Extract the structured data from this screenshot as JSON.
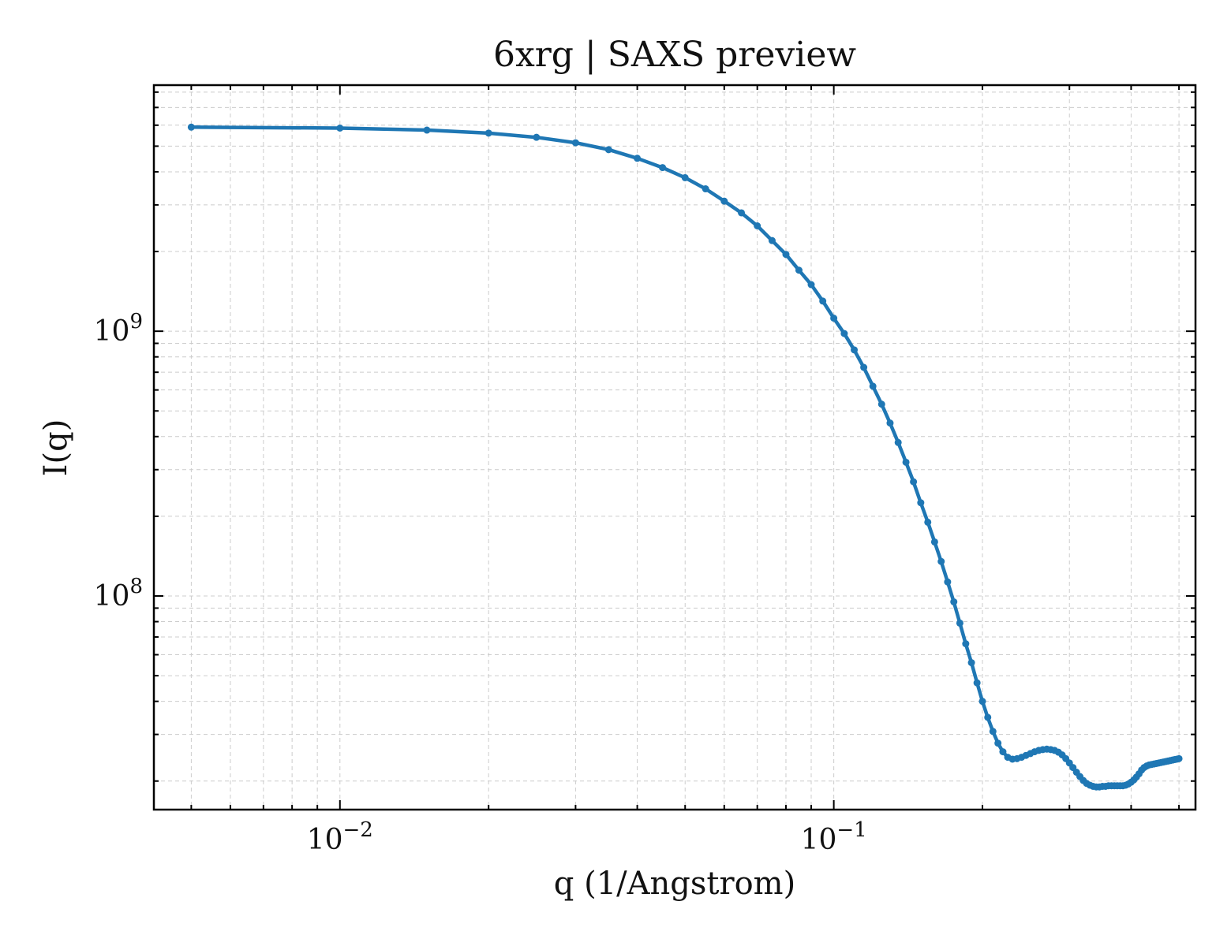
{
  "chart_data": {
    "type": "line",
    "title": "6xrg | SAXS preview",
    "xlabel": "q (1/Angstrom)",
    "ylabel": "I(q)",
    "xscale": "log",
    "yscale": "log",
    "xlim": [
      0.0042,
      0.54
    ],
    "ylim": [
      15600000,
      8500000000
    ],
    "x_major_ticks": [
      {
        "value": 0.01,
        "label": "10^-2"
      },
      {
        "value": 0.1,
        "label": "10^-1"
      }
    ],
    "y_major_ticks": [
      {
        "value": 100000000,
        "label": "10^8"
      },
      {
        "value": 1000000000,
        "label": "10^9"
      }
    ],
    "grid": true,
    "legend": "none",
    "marker": "point",
    "colors": {
      "series": "#1f77b4",
      "grid": "#cccccc",
      "axes": "#000000"
    },
    "series": [
      {
        "x": [
          0.005,
          0.01,
          0.015,
          0.02,
          0.025,
          0.03,
          0.035,
          0.04,
          0.045,
          0.05,
          0.055,
          0.06,
          0.065,
          0.07,
          0.075,
          0.08,
          0.085,
          0.09,
          0.095,
          0.1,
          0.105,
          0.11,
          0.115,
          0.12,
          0.125,
          0.13,
          0.135,
          0.14,
          0.145,
          0.15,
          0.155,
          0.16,
          0.165,
          0.17,
          0.175,
          0.18,
          0.185,
          0.19,
          0.195,
          0.2,
          0.205,
          0.21,
          0.215,
          0.22,
          0.225,
          0.23,
          0.235,
          0.24,
          0.245,
          0.25,
          0.255,
          0.26,
          0.265,
          0.27,
          0.275,
          0.28,
          0.285,
          0.29,
          0.295,
          0.3,
          0.305,
          0.31,
          0.315,
          0.32,
          0.325,
          0.33,
          0.335,
          0.34,
          0.345,
          0.35,
          0.355,
          0.36,
          0.365,
          0.37,
          0.375,
          0.38,
          0.385,
          0.39,
          0.395,
          0.4,
          0.405,
          0.41,
          0.415,
          0.42,
          0.425,
          0.43,
          0.435,
          0.44,
          0.445,
          0.45,
          0.455,
          0.46,
          0.465,
          0.47,
          0.475,
          0.48,
          0.485,
          0.49,
          0.495,
          0.5
        ],
        "y": [
          5900000000,
          5850000000,
          5750000000,
          5600000000,
          5400000000,
          5150000000,
          4850000000,
          4500000000,
          4150000000,
          3800000000,
          3450000000,
          3100000000,
          2800000000,
          2500000000,
          2200000000,
          1950000000,
          1700000000,
          1500000000,
          1300000000,
          1120000000,
          980000000,
          850000000,
          730000000,
          620000000,
          530000000,
          450000000,
          380000000,
          320000000,
          270000000,
          225000000,
          190000000,
          160000000,
          135000000,
          113000000,
          95000000,
          79000000,
          66000000,
          56000000,
          47000000,
          40000000,
          34800000,
          30800000,
          27800000,
          25800000,
          24600000,
          24200000,
          24300000,
          24600000,
          25000000,
          25400000,
          25800000,
          26100000,
          26300000,
          26400000,
          26300000,
          26100000,
          25700000,
          25100000,
          24300000,
          23400000,
          22500000,
          21600000,
          20800000,
          20100000,
          19600000,
          19300000,
          19100000,
          19000000,
          19000000,
          19100000,
          19100000,
          19200000,
          19200000,
          19200000,
          19200000,
          19200000,
          19200000,
          19300000,
          19500000,
          19800000,
          20200000,
          20700000,
          21300000,
          22000000,
          22500000,
          22800000,
          23000000,
          23100000,
          23200000,
          23300000,
          23400000,
          23500000,
          23600000,
          23700000,
          23800000,
          23900000,
          24000000,
          24100000,
          24200000,
          24300000
        ]
      }
    ]
  }
}
